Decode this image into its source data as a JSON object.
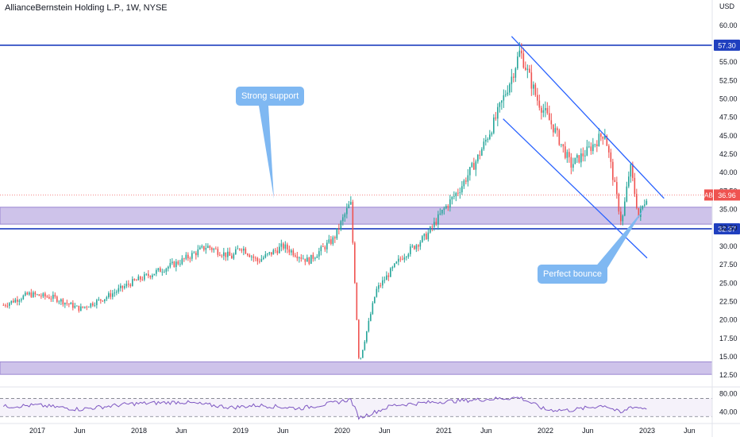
{
  "header": {
    "title": "AllianceBernstein Holding L.P., 1W, NYSE"
  },
  "colors": {
    "up": "#26a69a",
    "down": "#ef5350",
    "zone": "#c6b8e6",
    "level_line": "#1f3fbf",
    "channel_line": "#2962ff",
    "price_tag": "#ef5350",
    "callout": "#7fb8f2",
    "rsi": "#7e57c2"
  },
  "annotations": {
    "strong_support": "Strong support",
    "perfect_bounce": "Perfect bounce"
  },
  "chart_data": [
    {
      "type": "candlestick",
      "title": "AllianceBernstein Holding L.P., 1W, NYSE",
      "y_unit_label": "USD",
      "ylim": [
        11.0,
        61.5
      ],
      "y_ticks": [
        "60.00",
        "55.00",
        "52.50",
        "50.00",
        "47.50",
        "45.00",
        "42.50",
        "40.00",
        "37.50",
        "35.00",
        "32.50",
        "30.00",
        "27.50",
        "25.00",
        "22.50",
        "20.00",
        "17.50",
        "15.00",
        "12.50"
      ],
      "x_labels": [
        "2017",
        "Jun",
        "2018",
        "Jun",
        "2019",
        "Jun",
        "2020",
        "Jun",
        "2021",
        "Jun",
        "2022",
        "Jun",
        "2023",
        "Jun"
      ],
      "x_label_dates": [
        "2017-01",
        "2017-06",
        "2018-01",
        "2018-06",
        "2019-01",
        "2019-06",
        "2020-01",
        "2020-06",
        "2021-01",
        "2021-06",
        "2022-01",
        "2022-06",
        "2023-01",
        "2023-06"
      ],
      "series": [
        {
          "symbol": "AB",
          "last_price": "36.96",
          "points": [
            [
              "2016-09",
              22.0
            ],
            [
              "2016-12",
              23.5
            ],
            [
              "2017-03",
              23.0
            ],
            [
              "2017-06",
              21.5
            ],
            [
              "2017-09",
              23.0
            ],
            [
              "2017-12",
              25.0
            ],
            [
              "2018-03",
              26.5
            ],
            [
              "2018-06",
              28.0
            ],
            [
              "2018-09",
              30.0
            ],
            [
              "2018-12",
              28.5
            ],
            [
              "2019-01",
              30.0
            ],
            [
              "2019-03",
              28.0
            ],
            [
              "2019-06",
              30.0
            ],
            [
              "2019-09",
              28.0
            ],
            [
              "2019-12",
              31.0
            ],
            [
              "2020-02",
              36.0
            ],
            [
              "2020-03",
              14.0
            ],
            [
              "2020-05",
              24.0
            ],
            [
              "2020-08",
              28.5
            ],
            [
              "2020-11",
              31.5
            ],
            [
              "2021-01",
              35.0
            ],
            [
              "2021-03",
              38.0
            ],
            [
              "2021-05",
              42.0
            ],
            [
              "2021-07",
              47.0
            ],
            [
              "2021-09",
              53.0
            ],
            [
              "2021-10",
              56.5
            ],
            [
              "2021-12",
              50.0
            ],
            [
              "2022-02",
              46.0
            ],
            [
              "2022-04",
              41.0
            ],
            [
              "2022-06",
              43.0
            ],
            [
              "2022-08",
              45.5
            ],
            [
              "2022-10",
              33.0
            ],
            [
              "2022-11",
              41.0
            ],
            [
              "2022-12",
              34.0
            ],
            [
              "2023-01",
              36.96
            ]
          ]
        }
      ],
      "levels": [
        {
          "label": "57.30",
          "value": 57.3
        },
        {
          "label": "32.37",
          "value": 32.37
        }
      ],
      "zones": [
        {
          "from": 33.0,
          "to": 35.3
        },
        {
          "from": 12.6,
          "to": 14.3
        }
      ],
      "channel": {
        "upper": [
          [
            "2021-09",
            58.5
          ],
          [
            "2023-03",
            36.5
          ]
        ],
        "lower": [
          [
            "2021-08",
            47.3
          ],
          [
            "2023-01",
            28.4
          ]
        ]
      },
      "grid": false
    },
    {
      "type": "line",
      "title": "RSI",
      "ylim": [
        20,
        90
      ],
      "y_ticks": [
        "80.00",
        "40.00"
      ],
      "bands": [
        70,
        30
      ],
      "points": [
        [
          "2016-09",
          52
        ],
        [
          "2017-01",
          55
        ],
        [
          "2017-06",
          46
        ],
        [
          "2017-12",
          58
        ],
        [
          "2018-06",
          62
        ],
        [
          "2018-12",
          50
        ],
        [
          "2019-03",
          55
        ],
        [
          "2019-08",
          48
        ],
        [
          "2019-12",
          60
        ],
        [
          "2020-02",
          68
        ],
        [
          "2020-03",
          27
        ],
        [
          "2020-07",
          55
        ],
        [
          "2020-12",
          62
        ],
        [
          "2021-04",
          66
        ],
        [
          "2021-08",
          70
        ],
        [
          "2021-10",
          72
        ],
        [
          "2022-01",
          45
        ],
        [
          "2022-04",
          44
        ],
        [
          "2022-08",
          55
        ],
        [
          "2022-10",
          37
        ],
        [
          "2022-11",
          52
        ],
        [
          "2023-01",
          48
        ]
      ]
    }
  ]
}
